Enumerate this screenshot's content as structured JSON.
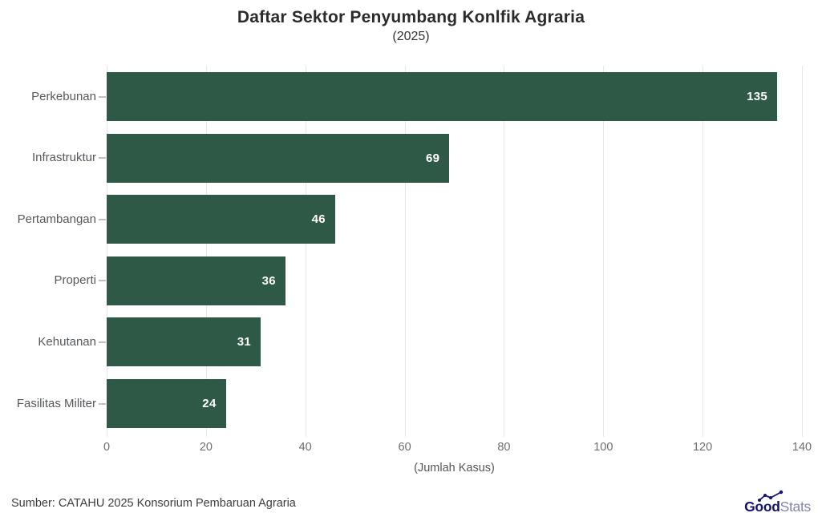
{
  "header": {
    "title": "Daftar Sektor Penyumbang Konlfik Agraria",
    "subtitle": "(2025)"
  },
  "chart_data": {
    "type": "bar",
    "orientation": "horizontal",
    "title": "Daftar Sektor Penyumbang Konlfik Agraria",
    "subtitle": "(2025)",
    "categories": [
      "Perkebunan",
      "Infrastruktur",
      "Pertambangan",
      "Properti",
      "Kehutanan",
      "Fasilitas Militer"
    ],
    "values": [
      135,
      69,
      46,
      36,
      31,
      24
    ],
    "xlabel": "(Jumlah Kasus)",
    "ylabel": "",
    "xlim": [
      0,
      140
    ],
    "xticks": [
      0,
      20,
      40,
      60,
      80,
      100,
      120,
      140
    ],
    "grid": true,
    "legend": false,
    "bar_color": "#2f5947",
    "value_label_color": "#ffffff"
  },
  "footer": {
    "source": "Sumber: CATAHU 2025 Konsorium Pembaruan Agraria",
    "logo": {
      "bold": "Good",
      "light": "Stats",
      "icon": "trend-line-icon",
      "bold_color": "#14146e",
      "light_color": "#8585ad"
    }
  }
}
